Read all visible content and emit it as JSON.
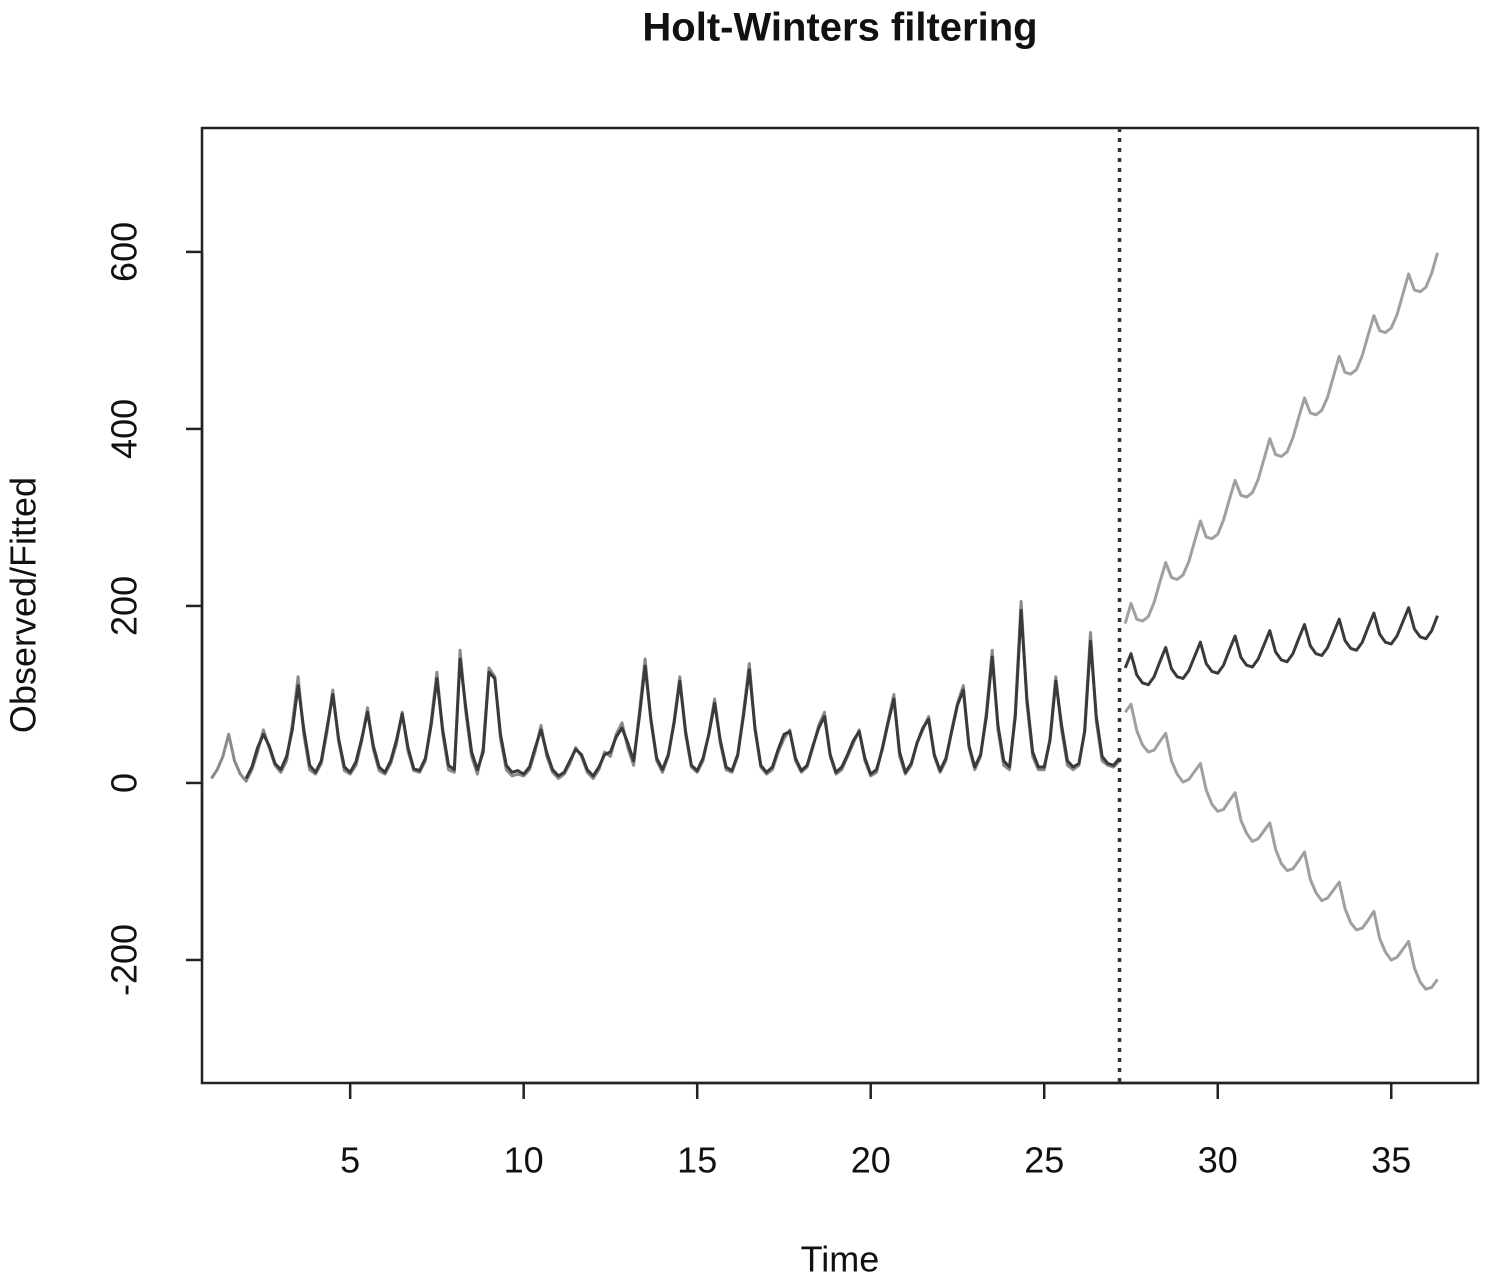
{
  "chart_data": {
    "type": "line",
    "title": "Holt-Winters filtering",
    "xlabel": "Time",
    "ylabel": "Observed/Fitted",
    "xlim": [
      0.73,
      37.5
    ],
    "ylim": [
      -339,
      740
    ],
    "xticks": [
      5,
      10,
      15,
      20,
      25,
      30,
      35
    ],
    "yticks": [
      -200,
      0,
      200,
      400,
      600
    ],
    "vline": 27.17,
    "x": [
      1,
      1.167,
      1.333,
      1.5,
      1.667,
      1.833,
      2,
      2.167,
      2.333,
      2.5,
      2.667,
      2.833,
      3,
      3.167,
      3.333,
      3.5,
      3.667,
      3.833,
      4,
      4.167,
      4.333,
      4.5,
      4.667,
      4.833,
      5,
      5.167,
      5.333,
      5.5,
      5.667,
      5.833,
      6,
      6.167,
      6.333,
      6.5,
      6.667,
      6.833,
      7,
      7.167,
      7.333,
      7.5,
      7.667,
      7.833,
      8,
      8.167,
      8.333,
      8.5,
      8.667,
      8.833,
      9,
      9.167,
      9.333,
      9.5,
      9.667,
      9.833,
      10,
      10.167,
      10.333,
      10.5,
      10.667,
      10.833,
      11,
      11.167,
      11.333,
      11.5,
      11.667,
      11.833,
      12,
      12.167,
      12.333,
      12.5,
      12.667,
      12.833,
      13,
      13.167,
      13.333,
      13.5,
      13.667,
      13.833,
      14,
      14.167,
      14.333,
      14.5,
      14.667,
      14.833,
      15,
      15.167,
      15.333,
      15.5,
      15.667,
      15.833,
      16,
      16.167,
      16.333,
      16.5,
      16.667,
      16.833,
      17,
      17.167,
      17.333,
      17.5,
      17.667,
      17.833,
      18,
      18.167,
      18.333,
      18.5,
      18.667,
      18.833,
      19,
      19.167,
      19.333,
      19.5,
      19.667,
      19.833,
      20,
      20.167,
      20.333,
      20.5,
      20.667,
      20.833,
      21,
      21.167,
      21.333,
      21.5,
      21.667,
      21.833,
      22,
      22.167,
      22.333,
      22.5,
      22.667,
      22.833,
      23,
      23.167,
      23.333,
      23.5,
      23.667,
      23.833,
      24,
      24.167,
      24.333,
      24.5,
      24.667,
      24.833,
      25,
      25.167,
      25.333,
      25.5,
      25.667,
      25.833,
      26,
      26.167,
      26.333,
      26.5,
      26.667,
      26.833,
      27,
      27.167,
      27.333,
      27.5,
      27.667,
      27.833,
      28,
      28.167,
      28.333,
      28.5,
      28.667,
      28.833,
      29,
      29.167,
      29.333,
      29.5,
      29.667,
      29.833,
      30,
      30.167,
      30.333,
      30.5,
      30.667,
      30.833,
      31,
      31.167,
      31.333,
      31.5,
      31.667,
      31.833,
      32,
      32.167,
      32.333,
      32.5,
      32.667,
      32.833,
      33,
      33.167,
      33.333,
      33.5,
      33.667,
      33.833,
      34,
      34.167,
      34.333,
      34.5,
      34.667,
      34.833,
      35,
      35.167,
      35.333,
      35.5,
      35.667,
      35.833,
      36,
      36.167,
      36.333
    ],
    "series": [
      {
        "color": "#8a8a8a",
        "values": [
          5,
          15,
          30,
          55,
          25,
          10,
          2,
          15,
          35,
          60,
          40,
          20,
          12,
          25,
          66,
          120,
          54,
          15,
          10,
          22,
          58,
          105,
          47,
          14,
          10,
          20,
          47,
          85,
          38,
          14,
          10,
          22,
          44,
          80,
          36,
          14,
          12,
          25,
          69,
          125,
          56,
          15,
          12,
          150,
          80,
          30,
          10,
          40,
          130,
          120,
          50,
          15,
          8,
          10,
          8,
          15,
          36,
          65,
          30,
          12,
          5,
          10,
          22,
          40,
          30,
          12,
          5,
          15,
          35,
          30,
          55,
          68,
          40,
          20,
          80,
          140,
          70,
          25,
          12,
          30,
          70,
          120,
          55,
          18,
          12,
          25,
          55,
          95,
          45,
          15,
          12,
          30,
          80,
          135,
          60,
          18,
          10,
          15,
          35,
          50,
          60,
          25,
          12,
          18,
          40,
          65,
          80,
          30,
          10,
          15,
          30,
          45,
          60,
          25,
          8,
          12,
          40,
          70,
          100,
          30,
          10,
          20,
          45,
          60,
          75,
          30,
          12,
          25,
          60,
          90,
          110,
          40,
          15,
          30,
          80,
          150,
          60,
          20,
          15,
          80,
          205,
          90,
          30,
          15,
          15,
          50,
          120,
          60,
          20,
          15,
          20,
          60,
          170,
          70,
          25,
          20,
          18,
          25,
          null,
          null,
          null,
          null,
          null,
          null,
          null,
          null,
          null,
          null,
          null,
          null,
          null,
          null,
          null,
          null,
          null,
          null,
          null,
          null,
          null,
          null,
          null,
          null,
          null,
          null,
          null,
          null,
          null,
          null,
          null,
          null,
          null,
          null,
          null,
          null,
          null,
          null,
          null,
          null,
          null,
          null,
          null,
          null,
          null,
          null,
          null,
          null,
          null,
          null,
          null,
          null,
          null,
          null,
          null
        ]
      },
      {
        "color": "#3a3a3a",
        "values": [
          null,
          null,
          null,
          null,
          null,
          null,
          5,
          18,
          40,
          55,
          42,
          22,
          15,
          30,
          60,
          110,
          60,
          20,
          12,
          25,
          62,
          100,
          50,
          18,
          12,
          24,
          50,
          80,
          42,
          18,
          12,
          25,
          48,
          78,
          40,
          16,
          14,
          28,
          65,
          118,
          60,
          20,
          15,
          140,
          85,
          35,
          15,
          35,
          125,
          118,
          55,
          20,
          12,
          14,
          10,
          18,
          40,
          60,
          34,
          15,
          8,
          12,
          25,
          38,
          32,
          15,
          8,
          18,
          32,
          35,
          52,
          62,
          45,
          25,
          75,
          132,
          72,
          28,
          15,
          32,
          68,
          115,
          58,
          20,
          14,
          28,
          55,
          90,
          48,
          18,
          14,
          32,
          76,
          128,
          62,
          20,
          12,
          18,
          38,
          55,
          58,
          28,
          14,
          20,
          42,
          62,
          75,
          32,
          12,
          18,
          32,
          48,
          58,
          28,
          10,
          15,
          38,
          68,
          95,
          35,
          12,
          22,
          45,
          62,
          72,
          32,
          14,
          28,
          58,
          88,
          105,
          42,
          18,
          32,
          75,
          142,
          65,
          25,
          18,
          75,
          195,
          95,
          35,
          18,
          18,
          48,
          115,
          65,
          25,
          18,
          22,
          58,
          160,
          75,
          30,
          22,
          20,
          28,
          null,
          null,
          null,
          null,
          null,
          null,
          null,
          null,
          null,
          null,
          null,
          null,
          null,
          null,
          null,
          null,
          null,
          null,
          null,
          null,
          null,
          null,
          null,
          null,
          null,
          null,
          null,
          null,
          null,
          null,
          null,
          null,
          null,
          null,
          null,
          null,
          null,
          null,
          null,
          null,
          null,
          null,
          null,
          null,
          null,
          null,
          null,
          null,
          null,
          null,
          null,
          null,
          null,
          null,
          null
        ]
      },
      {
        "color": "#3a3a3a",
        "values": [
          null,
          null,
          null,
          null,
          null,
          null,
          null,
          null,
          null,
          null,
          null,
          null,
          null,
          null,
          null,
          null,
          null,
          null,
          null,
          null,
          null,
          null,
          null,
          null,
          null,
          null,
          null,
          null,
          null,
          null,
          null,
          null,
          null,
          null,
          null,
          null,
          null,
          null,
          null,
          null,
          null,
          null,
          null,
          null,
          null,
          null,
          null,
          null,
          null,
          null,
          null,
          null,
          null,
          null,
          null,
          null,
          null,
          null,
          null,
          null,
          null,
          null,
          null,
          null,
          null,
          null,
          null,
          null,
          null,
          null,
          null,
          null,
          null,
          null,
          null,
          null,
          null,
          null,
          null,
          null,
          null,
          null,
          null,
          null,
          null,
          null,
          null,
          null,
          null,
          null,
          null,
          null,
          null,
          null,
          null,
          null,
          null,
          null,
          null,
          null,
          null,
          null,
          null,
          null,
          null,
          null,
          null,
          null,
          null,
          null,
          null,
          null,
          null,
          null,
          null,
          null,
          null,
          null,
          null,
          null,
          null,
          null,
          null,
          null,
          null,
          null,
          null,
          null,
          null,
          null,
          null,
          null,
          null,
          null,
          null,
          null,
          null,
          null,
          null,
          null,
          null,
          null,
          null,
          null,
          null,
          null,
          null,
          null,
          null,
          null,
          null,
          null,
          null,
          null,
          null,
          null,
          null,
          null,
          130,
          146,
          122,
          113,
          111,
          120,
          137,
          153,
          129,
          120,
          118,
          127,
          143,
          159,
          135,
          126,
          124,
          133,
          150,
          166,
          142,
          133,
          131,
          140,
          156,
          172,
          148,
          139,
          137,
          146,
          163,
          179,
          155,
          146,
          144,
          153,
          169,
          185,
          161,
          152,
          150,
          159,
          176,
          192,
          168,
          159,
          157,
          166,
          182,
          198,
          174,
          165,
          163,
          172,
          189
        ]
      },
      {
        "color": "#a0a0a0",
        "values": [
          null,
          null,
          null,
          null,
          null,
          null,
          null,
          null,
          null,
          null,
          null,
          null,
          null,
          null,
          null,
          null,
          null,
          null,
          null,
          null,
          null,
          null,
          null,
          null,
          null,
          null,
          null,
          null,
          null,
          null,
          null,
          null,
          null,
          null,
          null,
          null,
          null,
          null,
          null,
          null,
          null,
          null,
          null,
          null,
          null,
          null,
          null,
          null,
          null,
          null,
          null,
          null,
          null,
          null,
          null,
          null,
          null,
          null,
          null,
          null,
          null,
          null,
          null,
          null,
          null,
          null,
          null,
          null,
          null,
          null,
          null,
          null,
          null,
          null,
          null,
          null,
          null,
          null,
          null,
          null,
          null,
          null,
          null,
          null,
          null,
          null,
          null,
          null,
          null,
          null,
          null,
          null,
          null,
          null,
          null,
          null,
          null,
          null,
          null,
          null,
          null,
          null,
          null,
          null,
          null,
          null,
          null,
          null,
          null,
          null,
          null,
          null,
          null,
          null,
          null,
          null,
          null,
          null,
          null,
          null,
          null,
          null,
          null,
          null,
          null,
          null,
          null,
          null,
          null,
          null,
          null,
          null,
          null,
          null,
          null,
          null,
          null,
          null,
          null,
          null,
          null,
          null,
          null,
          null,
          null,
          null,
          null,
          null,
          null,
          null,
          null,
          null,
          null,
          null,
          null,
          null,
          null,
          null,
          180,
          203,
          185,
          183,
          188,
          204,
          227,
          249,
          232,
          230,
          235,
          250,
          273,
          296,
          278,
          276,
          281,
          297,
          320,
          342,
          325,
          323,
          328,
          343,
          366,
          389,
          371,
          369,
          374,
          390,
          413,
          435,
          418,
          416,
          421,
          436,
          459,
          482,
          464,
          462,
          467,
          483,
          506,
          528,
          511,
          509,
          514,
          529,
          552,
          575,
          557,
          555,
          560,
          576,
          599
        ]
      },
      {
        "color": "#a0a0a0",
        "values": [
          null,
          null,
          null,
          null,
          null,
          null,
          null,
          null,
          null,
          null,
          null,
          null,
          null,
          null,
          null,
          null,
          null,
          null,
          null,
          null,
          null,
          null,
          null,
          null,
          null,
          null,
          null,
          null,
          null,
          null,
          null,
          null,
          null,
          null,
          null,
          null,
          null,
          null,
          null,
          null,
          null,
          null,
          null,
          null,
          null,
          null,
          null,
          null,
          null,
          null,
          null,
          null,
          null,
          null,
          null,
          null,
          null,
          null,
          null,
          null,
          null,
          null,
          null,
          null,
          null,
          null,
          null,
          null,
          null,
          null,
          null,
          null,
          null,
          null,
          null,
          null,
          null,
          null,
          null,
          null,
          null,
          null,
          null,
          null,
          null,
          null,
          null,
          null,
          null,
          null,
          null,
          null,
          null,
          null,
          null,
          null,
          null,
          null,
          null,
          null,
          null,
          null,
          null,
          null,
          null,
          null,
          null,
          null,
          null,
          null,
          null,
          null,
          null,
          null,
          null,
          null,
          null,
          null,
          null,
          null,
          null,
          null,
          null,
          null,
          null,
          null,
          null,
          null,
          null,
          null,
          null,
          null,
          null,
          null,
          null,
          null,
          null,
          null,
          null,
          null,
          null,
          null,
          null,
          null,
          null,
          null,
          null,
          null,
          null,
          null,
          null,
          null,
          null,
          null,
          null,
          null,
          null,
          null,
          80,
          89,
          59,
          43,
          35,
          37,
          47,
          56,
          25,
          10,
          1,
          4,
          13,
          22,
          -8,
          -24,
          -32,
          -30,
          -20,
          -11,
          -42,
          -57,
          -66,
          -63,
          -54,
          -45,
          -75,
          -91,
          -99,
          -97,
          -88,
          -78,
          -109,
          -124,
          -133,
          -130,
          -121,
          -112,
          -142,
          -158,
          -166,
          -164,
          -155,
          -145,
          -176,
          -191,
          -200,
          -197,
          -188,
          -179,
          -209,
          -225,
          -233,
          -231,
          -222
        ]
      }
    ]
  }
}
